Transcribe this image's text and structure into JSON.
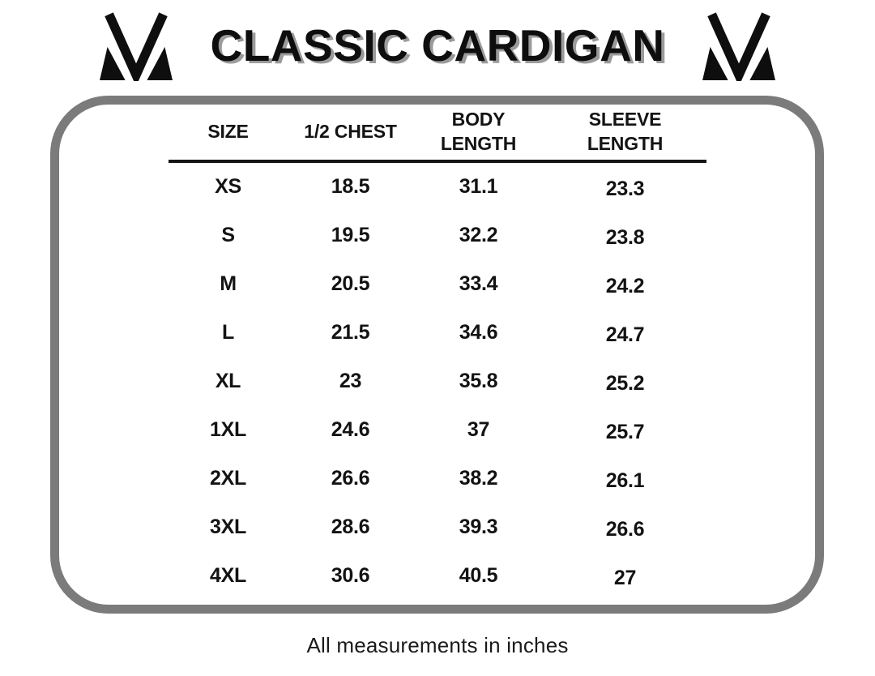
{
  "header": {
    "title": "CLASSIC CARDIGAN",
    "logo": "mv-monogram"
  },
  "chart_data": {
    "type": "table",
    "title": "CLASSIC CARDIGAN",
    "columns": [
      "SIZE",
      "1/2 CHEST",
      "BODY LENGTH",
      "SLEEVE LENGTH"
    ],
    "rows": [
      [
        "XS",
        "18.5",
        "31.1",
        "23.3"
      ],
      [
        "S",
        "19.5",
        "32.2",
        "23.8"
      ],
      [
        "M",
        "20.5",
        "33.4",
        "24.2"
      ],
      [
        "L",
        "21.5",
        "34.6",
        "24.7"
      ],
      [
        "XL",
        "23",
        "35.8",
        "25.2"
      ],
      [
        "1XL",
        "24.6",
        "37",
        "25.7"
      ],
      [
        "2XL",
        "26.6",
        "38.2",
        "26.1"
      ],
      [
        "3XL",
        "28.6",
        "39.3",
        "26.6"
      ],
      [
        "4XL",
        "30.6",
        "40.5",
        "27"
      ]
    ],
    "footnote": "All measurements in inches",
    "layout": {
      "grid": "off",
      "header_underline": true,
      "panel_border": "rounded-gray"
    }
  },
  "icons": {
    "brand_monogram": "mv-monogram-icon"
  },
  "colors": {
    "text": "#131313",
    "panel_border_gray": "#7b7b7b",
    "title_shadow_gray": "#9b9b9b",
    "background": "#ffffff"
  }
}
